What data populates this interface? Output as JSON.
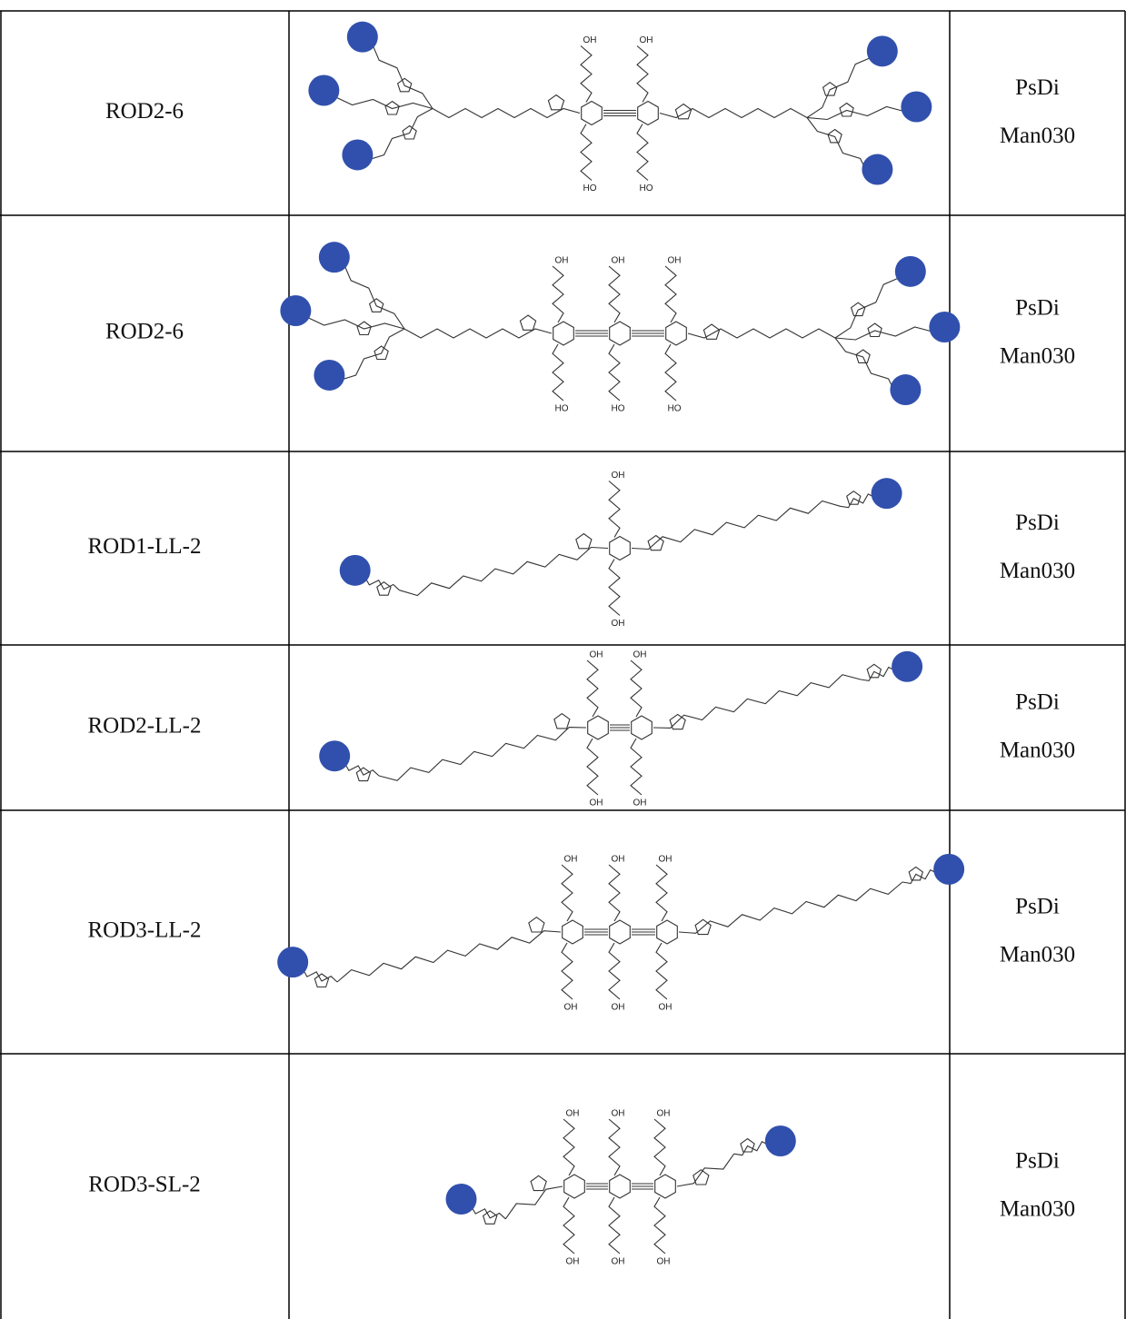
{
  "table": {
    "rows": [
      {
        "name": "ROD2-6",
        "structure": {
          "top_labels": [
            "OH",
            "OH"
          ],
          "bottom_labels": [
            "HO",
            "HO"
          ]
        },
        "source": [
          "PsDi",
          "Man030"
        ]
      },
      {
        "name": "ROD2-6",
        "structure": {
          "top_labels": [
            "OH",
            "OH",
            "OH"
          ],
          "bottom_labels": [
            "HO",
            "HO",
            "HO"
          ]
        },
        "source": [
          "PsDi",
          "Man030"
        ]
      },
      {
        "name": "ROD1-LL-2",
        "structure": {
          "top_labels": [
            "OH"
          ],
          "bottom_labels": [
            "OH"
          ]
        },
        "source": [
          "PsDi",
          "Man030"
        ]
      },
      {
        "name": "ROD2-LL-2",
        "structure": {
          "top_labels": [
            "OH",
            "OH"
          ],
          "bottom_labels": [
            "OH",
            "OH"
          ]
        },
        "source": [
          "PsDi",
          "Man030"
        ]
      },
      {
        "name": "ROD3-LL-2",
        "structure": {
          "top_labels": [
            "OH",
            "OH",
            "OH"
          ],
          "bottom_labels": [
            "OH",
            "OH",
            "OH"
          ]
        },
        "source": [
          "PsDi",
          "Man030"
        ]
      },
      {
        "name": "ROD3-SL-2",
        "structure": {
          "top_labels": [
            "OH",
            "OH",
            "OH"
          ],
          "bottom_labels": [
            "OH",
            "OH",
            "OH"
          ]
        },
        "source": [
          "PsDi",
          "Man030"
        ]
      }
    ]
  }
}
